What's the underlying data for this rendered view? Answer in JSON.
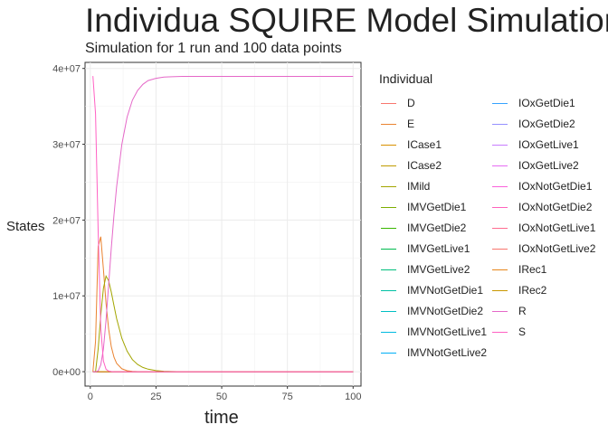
{
  "chart_data": {
    "type": "line",
    "title": "Individua SQUIRE Model Simulation",
    "subtitle": "Simulation for 1 run and 100 data points",
    "xlabel": "time",
    "ylabel": "States",
    "xlim": [
      -2,
      103
    ],
    "ylim": [
      -1900000,
      40800000
    ],
    "x_ticks": [
      0,
      25,
      50,
      75,
      100
    ],
    "y_ticks": [
      0,
      10000000,
      20000000,
      30000000,
      40000000
    ],
    "x_tick_labels": [
      "0",
      "25",
      "50",
      "75",
      "100"
    ],
    "y_tick_labels": [
      "0e+00",
      "1e+07",
      "2e+07",
      "3e+07",
      "4e+07"
    ],
    "grid": true,
    "legend_title": "Individual",
    "legend_position": "right",
    "x": [
      1,
      2,
      3,
      4,
      5,
      6,
      7,
      8,
      9,
      10,
      12,
      14,
      16,
      18,
      20,
      22,
      25,
      28,
      31,
      35,
      40,
      50,
      60,
      70,
      80,
      90,
      100
    ],
    "series": [
      {
        "name": "D",
        "color": "#F8766D",
        "values": [
          0,
          0,
          0,
          0,
          0,
          0,
          0,
          0,
          0,
          0,
          0,
          0,
          0,
          0,
          0,
          0,
          0,
          0,
          0,
          0,
          0,
          0,
          0,
          0,
          0,
          0,
          0
        ]
      },
      {
        "name": "E",
        "color": "#EA8331",
        "values": [
          0,
          4000000,
          16500000,
          17800000,
          13500000,
          9000000,
          5600000,
          3300000,
          1900000,
          1100000,
          380000,
          130000,
          40000,
          10000,
          0,
          0,
          0,
          0,
          0,
          0,
          0,
          0,
          0,
          0,
          0,
          0,
          0
        ]
      },
      {
        "name": "ICase1",
        "color": "#D89000",
        "values": [
          0,
          0,
          0,
          0,
          0,
          0,
          0,
          0,
          0,
          0,
          0,
          0,
          0,
          0,
          0,
          0,
          0,
          0,
          0,
          0,
          0,
          0,
          0,
          0,
          0,
          0,
          0
        ]
      },
      {
        "name": "ICase2",
        "color": "#C09B00",
        "values": [
          0,
          0,
          0,
          0,
          0,
          0,
          0,
          0,
          0,
          0,
          0,
          0,
          0,
          0,
          0,
          0,
          0,
          0,
          0,
          0,
          0,
          0,
          0,
          0,
          0,
          0,
          0
        ]
      },
      {
        "name": "IMild",
        "color": "#A3A500",
        "values": [
          0,
          0,
          3000000,
          7500000,
          11000000,
          12600000,
          12000000,
          10500000,
          8700000,
          7000000,
          4400000,
          2700000,
          1600000,
          950000,
          560000,
          330000,
          140000,
          60000,
          20000,
          0,
          0,
          0,
          0,
          0,
          0,
          0,
          0
        ]
      },
      {
        "name": "IMVGetDie1",
        "color": "#7CAE00",
        "values": [
          0,
          0,
          0,
          0,
          0,
          0,
          0,
          0,
          0,
          0,
          0,
          0,
          0,
          0,
          0,
          0,
          0,
          0,
          0,
          0,
          0,
          0,
          0,
          0,
          0,
          0,
          0
        ]
      },
      {
        "name": "IMVGetDie2",
        "color": "#39B600",
        "values": [
          0,
          0,
          0,
          0,
          0,
          0,
          0,
          0,
          0,
          0,
          0,
          0,
          0,
          0,
          0,
          0,
          0,
          0,
          0,
          0,
          0,
          0,
          0,
          0,
          0,
          0,
          0
        ]
      },
      {
        "name": "IMVGetLive1",
        "color": "#00BB4E",
        "values": [
          0,
          0,
          0,
          0,
          0,
          0,
          0,
          0,
          0,
          0,
          0,
          0,
          0,
          0,
          0,
          0,
          0,
          0,
          0,
          0,
          0,
          0,
          0,
          0,
          0,
          0,
          0
        ]
      },
      {
        "name": "IMVGetLive2",
        "color": "#00BF7D",
        "values": [
          0,
          0,
          0,
          0,
          0,
          0,
          0,
          0,
          0,
          0,
          0,
          0,
          0,
          0,
          0,
          0,
          0,
          0,
          0,
          0,
          0,
          0,
          0,
          0,
          0,
          0,
          0
        ]
      },
      {
        "name": "IMVNotGetDie1",
        "color": "#00C1A3",
        "values": [
          0,
          0,
          0,
          0,
          0,
          0,
          0,
          0,
          0,
          0,
          0,
          0,
          0,
          0,
          0,
          0,
          0,
          0,
          0,
          0,
          0,
          0,
          0,
          0,
          0,
          0,
          0
        ]
      },
      {
        "name": "IMVNotGetDie2",
        "color": "#00BFC4",
        "values": [
          0,
          0,
          0,
          0,
          0,
          0,
          0,
          0,
          0,
          0,
          0,
          0,
          0,
          0,
          0,
          0,
          0,
          0,
          0,
          0,
          0,
          0,
          0,
          0,
          0,
          0,
          0
        ]
      },
      {
        "name": "IMVNotGetLive1",
        "color": "#00BAE0",
        "values": [
          0,
          0,
          0,
          0,
          0,
          0,
          0,
          0,
          0,
          0,
          0,
          0,
          0,
          0,
          0,
          0,
          0,
          0,
          0,
          0,
          0,
          0,
          0,
          0,
          0,
          0,
          0
        ]
      },
      {
        "name": "IMVNotGetLive2",
        "color": "#00B0F6",
        "values": [
          0,
          0,
          0,
          0,
          0,
          0,
          0,
          0,
          0,
          0,
          0,
          0,
          0,
          0,
          0,
          0,
          0,
          0,
          0,
          0,
          0,
          0,
          0,
          0,
          0,
          0,
          0
        ]
      },
      {
        "name": "IOxGetDie1",
        "color": "#35A2FF",
        "values": [
          0,
          0,
          0,
          0,
          0,
          0,
          0,
          0,
          0,
          0,
          0,
          0,
          0,
          0,
          0,
          0,
          0,
          0,
          0,
          0,
          0,
          0,
          0,
          0,
          0,
          0,
          0
        ]
      },
      {
        "name": "IOxGetDie2",
        "color": "#9590FF",
        "values": [
          0,
          0,
          0,
          0,
          0,
          0,
          0,
          0,
          0,
          0,
          0,
          0,
          0,
          0,
          0,
          0,
          0,
          0,
          0,
          0,
          0,
          0,
          0,
          0,
          0,
          0,
          0
        ]
      },
      {
        "name": "IOxGetLive1",
        "color": "#C77CFF",
        "values": [
          0,
          0,
          0,
          0,
          0,
          0,
          0,
          0,
          0,
          0,
          0,
          0,
          0,
          0,
          0,
          0,
          0,
          0,
          0,
          0,
          0,
          0,
          0,
          0,
          0,
          0,
          0
        ]
      },
      {
        "name": "IOxGetLive2",
        "color": "#E76BF3",
        "values": [
          0,
          0,
          0,
          0,
          0,
          0,
          0,
          0,
          0,
          0,
          0,
          0,
          0,
          0,
          0,
          0,
          0,
          0,
          0,
          0,
          0,
          0,
          0,
          0,
          0,
          0,
          0
        ]
      },
      {
        "name": "IOxNotGetDie1",
        "color": "#FA62DB",
        "values": [
          0,
          0,
          0,
          0,
          0,
          0,
          0,
          0,
          0,
          0,
          0,
          0,
          0,
          0,
          0,
          0,
          0,
          0,
          0,
          0,
          0,
          0,
          0,
          0,
          0,
          0,
          0
        ]
      },
      {
        "name": "IOxNotGetDie2",
        "color": "#FF62BC",
        "values": [
          0,
          0,
          0,
          0,
          0,
          0,
          0,
          0,
          0,
          0,
          0,
          0,
          0,
          0,
          0,
          0,
          0,
          0,
          0,
          0,
          0,
          0,
          0,
          0,
          0,
          0,
          0
        ]
      },
      {
        "name": "IOxNotGetLive1",
        "color": "#FF6C91",
        "values": [
          0,
          0,
          0,
          0,
          0,
          0,
          0,
          0,
          0,
          0,
          0,
          0,
          0,
          0,
          0,
          0,
          0,
          0,
          0,
          0,
          0,
          0,
          0,
          0,
          0,
          0,
          0
        ]
      },
      {
        "name": "IOxNotGetLive2",
        "color": "#F8766D",
        "values": [
          0,
          0,
          0,
          0,
          0,
          0,
          0,
          0,
          0,
          0,
          0,
          0,
          0,
          0,
          0,
          0,
          0,
          0,
          0,
          0,
          0,
          0,
          0,
          0,
          0,
          0,
          0
        ]
      },
      {
        "name": "IRec1",
        "color": "#E7861B",
        "values": [
          0,
          0,
          0,
          0,
          0,
          0,
          0,
          0,
          0,
          0,
          0,
          0,
          0,
          0,
          0,
          0,
          0,
          0,
          0,
          0,
          0,
          0,
          0,
          0,
          0,
          0,
          0
        ]
      },
      {
        "name": "IRec2",
        "color": "#C99800",
        "values": [
          0,
          0,
          0,
          0,
          0,
          0,
          0,
          0,
          0,
          0,
          0,
          0,
          0,
          0,
          0,
          0,
          0,
          0,
          0,
          0,
          0,
          0,
          0,
          0,
          0,
          0,
          0
        ]
      },
      {
        "name": "R",
        "color": "#E568C8",
        "values": [
          0,
          0,
          100000,
          900000,
          3000000,
          6800000,
          11500000,
          16300000,
          20700000,
          24400000,
          30000000,
          33600000,
          35800000,
          37100000,
          37900000,
          38400000,
          38700000,
          38850000,
          38900000,
          38950000,
          38950000,
          38950000,
          38950000,
          38950000,
          38950000,
          38950000,
          38950000
        ]
      },
      {
        "name": "S",
        "color": "#FF61C3",
        "values": [
          39000000,
          34000000,
          18500000,
          5700000,
          1400000,
          320000,
          80000,
          20000,
          0,
          0,
          0,
          0,
          0,
          0,
          0,
          0,
          0,
          0,
          0,
          0,
          0,
          0,
          0,
          0,
          0,
          0,
          0
        ]
      }
    ]
  }
}
